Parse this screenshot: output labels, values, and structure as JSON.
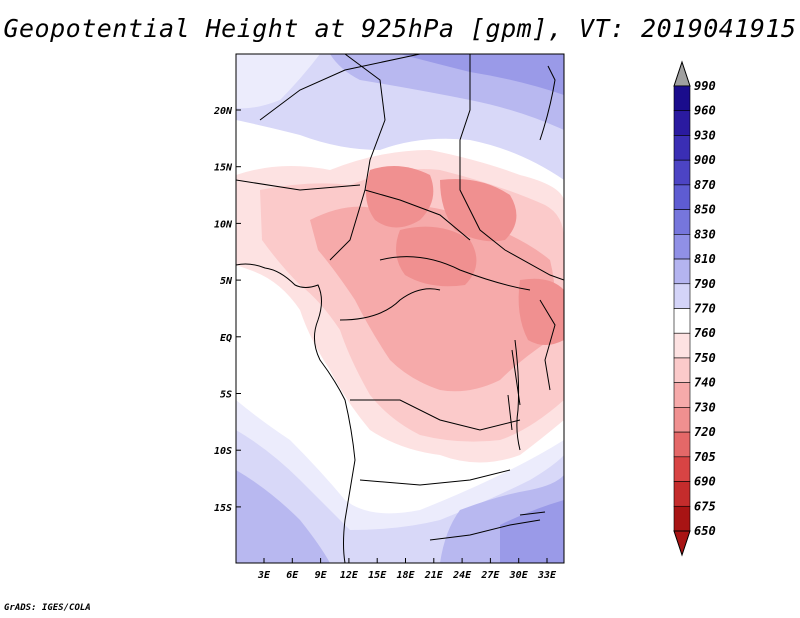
{
  "title": "Geopotential Height at 925hPa [gpm], VT: 2019041915",
  "footer": "GrADS: IGES/COLA",
  "map": {
    "lat_labels": [
      "20N",
      "15N",
      "10N",
      "5N",
      "EQ",
      "5S",
      "10S",
      "15S"
    ],
    "lon_labels": [
      "3E",
      "6E",
      "9E",
      "12E",
      "15E",
      "18E",
      "21E",
      "24E",
      "27E",
      "30E",
      "33E"
    ]
  },
  "colorbar": {
    "levels": [
      "990",
      "960",
      "930",
      "900",
      "870",
      "850",
      "830",
      "810",
      "790",
      "770",
      "760",
      "750",
      "740",
      "730",
      "720",
      "705",
      "690",
      "675",
      "650"
    ],
    "colors": [
      "#1a0c8c",
      "#2a1aa0",
      "#3a2eb4",
      "#4c44c4",
      "#5e5cd2",
      "#7676dc",
      "#9090e6",
      "#b4b4f0",
      "#d4d4f8",
      "#ffffff",
      "#fde2e2",
      "#fbcaca",
      "#f6aaaa",
      "#f09090",
      "#e46868",
      "#d84444",
      "#c42c2c",
      "#a81414"
    ],
    "top_arrow_color": "#a0a0a0",
    "bottom_arrow_color": "#a81414"
  }
}
